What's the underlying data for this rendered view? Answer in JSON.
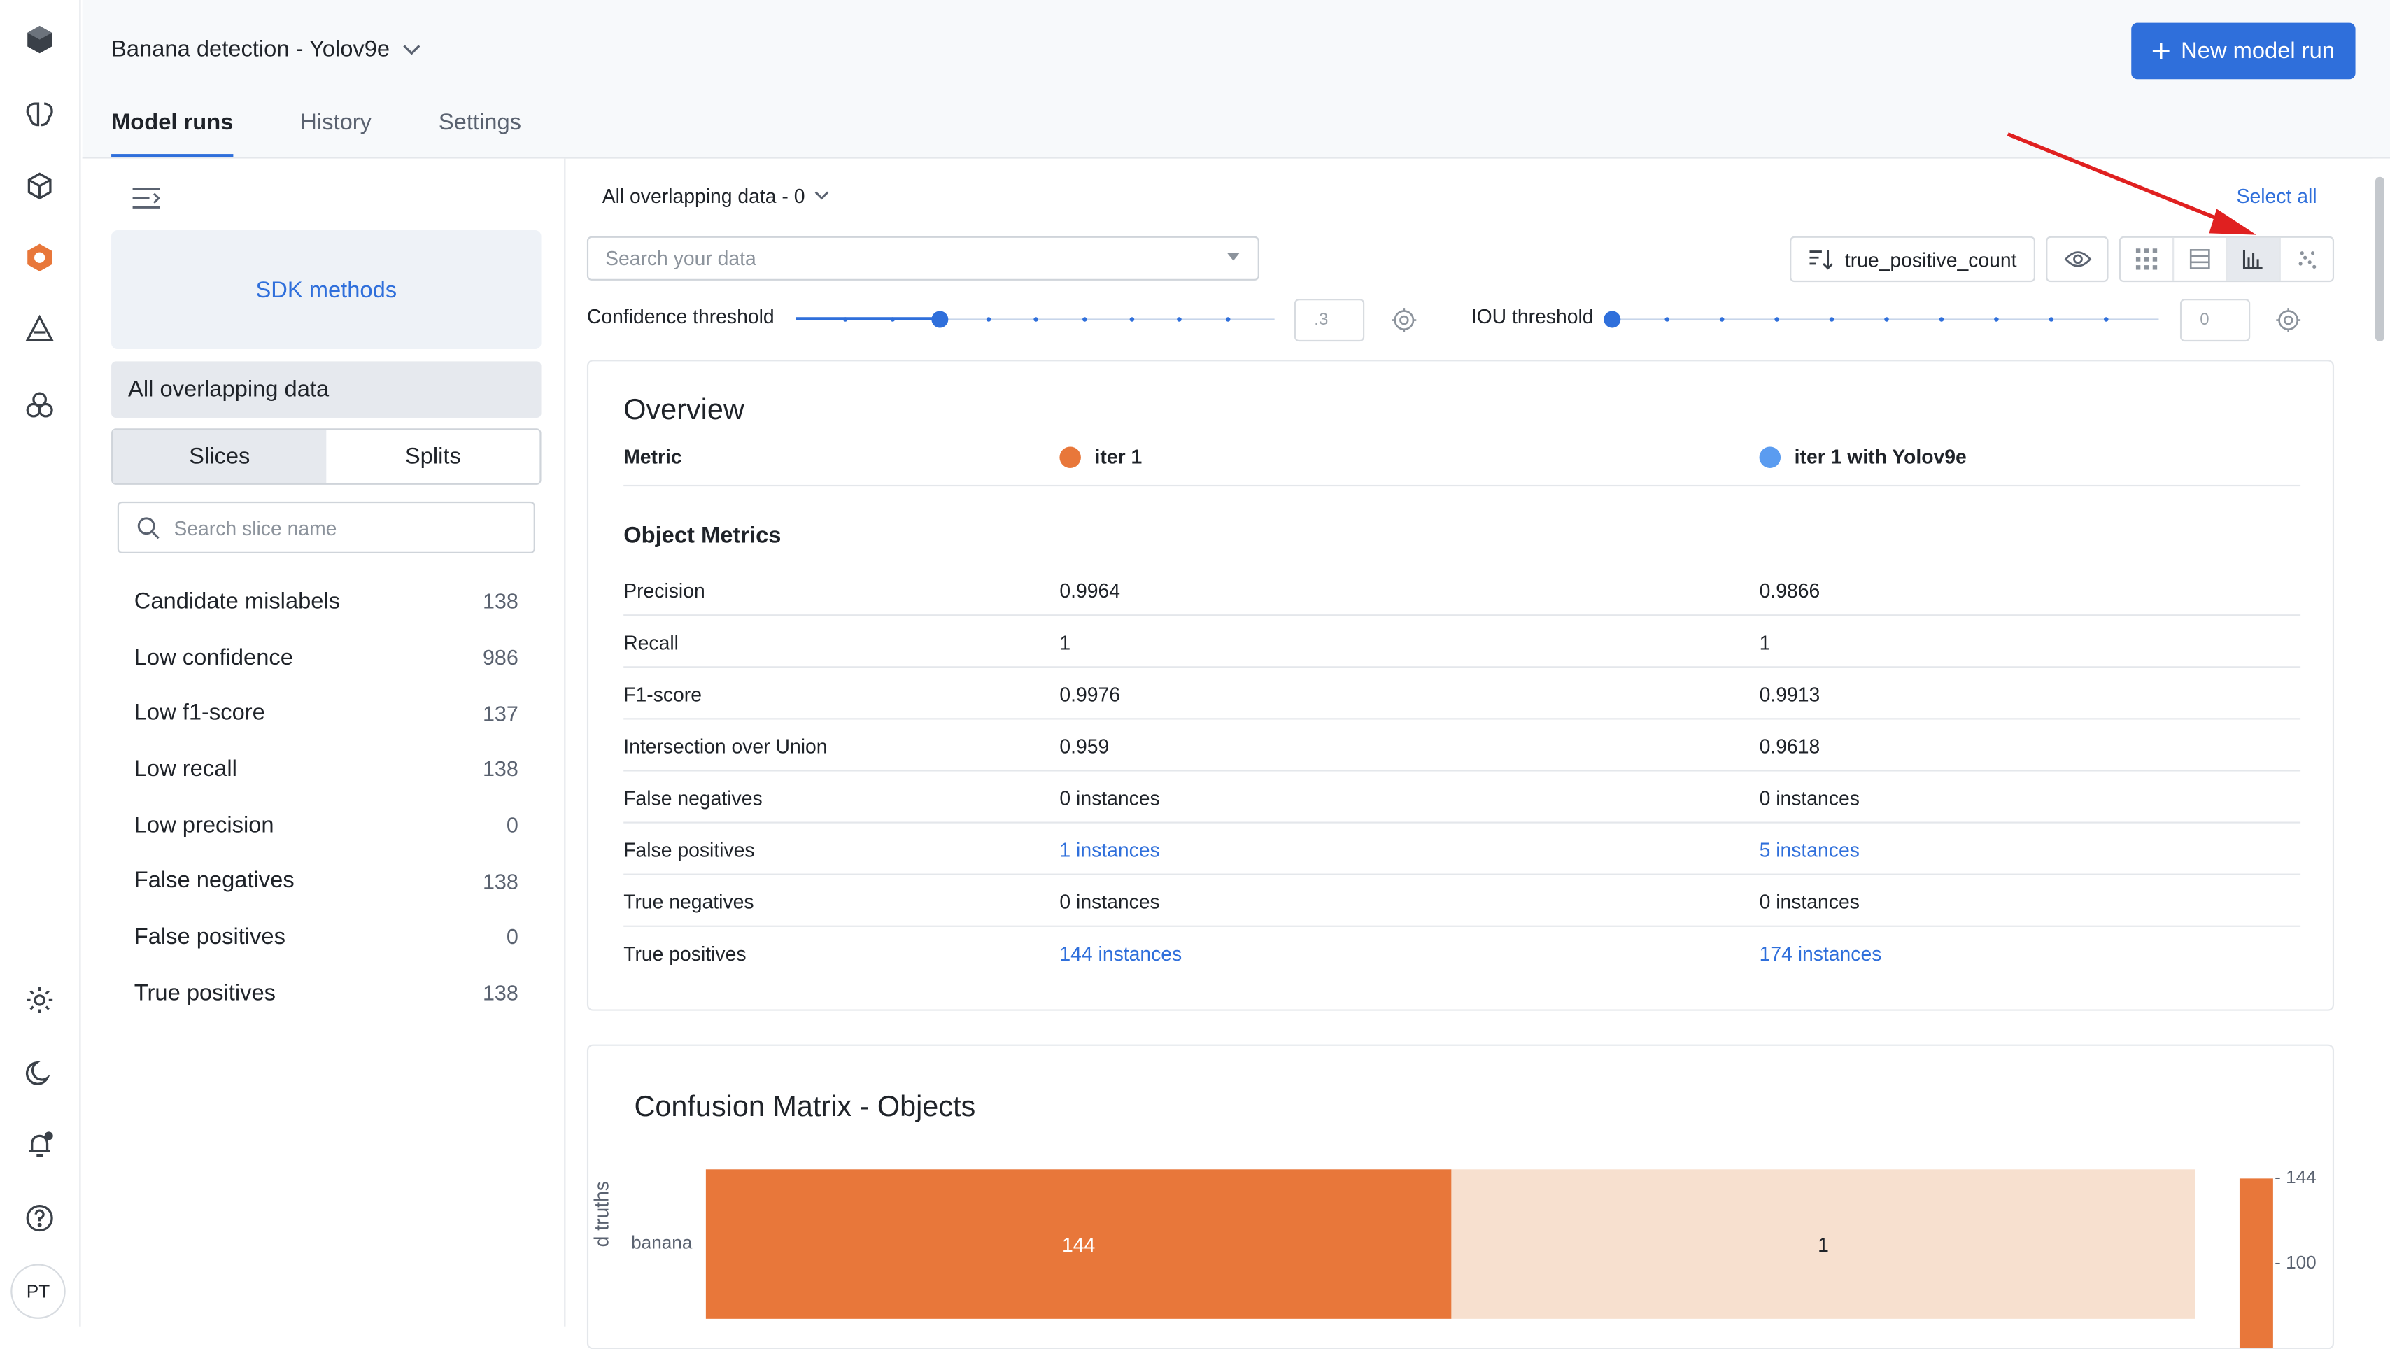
{
  "project": {
    "title": "Banana detection - Yolov9e"
  },
  "tabs": [
    {
      "label": "Model runs",
      "active": true
    },
    {
      "label": "History"
    },
    {
      "label": "Settings"
    }
  ],
  "new_run_label": "New model run",
  "sidebar": {
    "sdk_label": "SDK methods",
    "all_overlapping": "All overlapping data",
    "segments": [
      "Slices",
      "Splits"
    ],
    "search_placeholder": "Search slice name",
    "slices": [
      {
        "label": "Candidate mislabels",
        "count": "138"
      },
      {
        "label": "Low confidence",
        "count": "986"
      },
      {
        "label": "Low f1-score",
        "count": "137"
      },
      {
        "label": "Low recall",
        "count": "138"
      },
      {
        "label": "Low precision",
        "count": "0"
      },
      {
        "label": "False negatives",
        "count": "138"
      },
      {
        "label": "False positives",
        "count": "0"
      },
      {
        "label": "True positives",
        "count": "138"
      }
    ]
  },
  "avatar_initials": "PT",
  "toolbar": {
    "filter_label": "All overlapping data - 0",
    "select_all": "Select all",
    "search_placeholder": "Search your data",
    "sort_label": "true_positive_count",
    "confidence_label": "Confidence threshold",
    "confidence_value": ".3",
    "iou_label": "IOU threshold",
    "iou_value": "0"
  },
  "overview": {
    "title": "Overview",
    "metric_header": "Metric",
    "runs": [
      {
        "name": "iter 1",
        "color": "#e8773a"
      },
      {
        "name": "iter 1 with Yolov9e",
        "color": "#5b9cf0"
      }
    ],
    "section": "Object Metrics",
    "rows": [
      {
        "metric": "Precision",
        "a": "0.9964",
        "b": "0.9866"
      },
      {
        "metric": "Recall",
        "a": "1",
        "b": "1"
      },
      {
        "metric": "F1-score",
        "a": "0.9976",
        "b": "0.9913"
      },
      {
        "metric": "Intersection over Union",
        "a": "0.959",
        "b": "0.9618"
      },
      {
        "metric": "False negatives",
        "a": "0 instances",
        "b": "0 instances"
      },
      {
        "metric": "False positives",
        "a": "1 instances",
        "b": "5 instances",
        "link": true
      },
      {
        "metric": "True negatives",
        "a": "0 instances",
        "b": "0 instances"
      },
      {
        "metric": "True positives",
        "a": "144 instances",
        "b": "174 instances",
        "link": true
      }
    ]
  },
  "confusion": {
    "title": "Confusion Matrix - Objects",
    "ylabel": "d truths",
    "row_label": "banana",
    "cells": [
      "144",
      "1"
    ],
    "scale_ticks": [
      "144",
      "100"
    ]
  }
}
